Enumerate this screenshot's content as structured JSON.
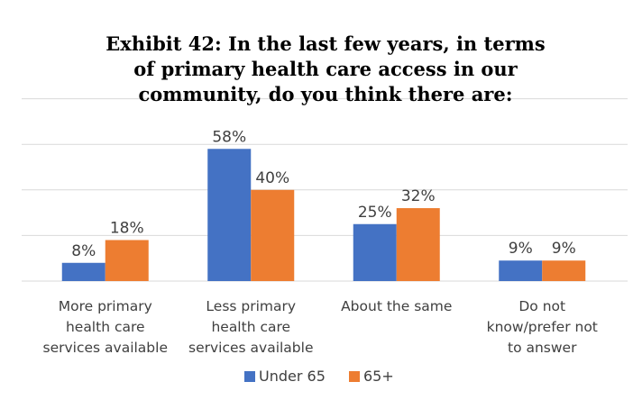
{
  "chart_data": {
    "type": "bar",
    "title": "Exhibit 42: In the last few years, in terms of primary health care access in our community, do you think there are:",
    "title_lines": [
      "Exhibit 42: In the last few years, in terms",
      "of primary health care access in our",
      "community, do you think there are:"
    ],
    "categories": [
      "More primary health care services available",
      "Less primary health care services available",
      "About the same",
      "Do not know/prefer not to answer"
    ],
    "category_label_lines": [
      [
        "More primary",
        "health care",
        "services available"
      ],
      [
        "Less primary",
        "health care",
        "services available"
      ],
      [
        "About the same"
      ],
      [
        "Do not",
        "know/prefer not",
        "to answer"
      ]
    ],
    "series": [
      {
        "name": "Under 65",
        "color": "#4472C4",
        "values": [
          8,
          58,
          25,
          9
        ],
        "labels": [
          "8%",
          "58%",
          "25%",
          "9%"
        ]
      },
      {
        "name": "65+",
        "color": "#ED7D31",
        "values": [
          18,
          40,
          32,
          9
        ],
        "labels": [
          "18%",
          "40%",
          "32%",
          "9%"
        ]
      }
    ],
    "ylim": [
      0,
      80
    ],
    "grid": true,
    "legend": "bottom",
    "xlabel": "",
    "ylabel": ""
  }
}
